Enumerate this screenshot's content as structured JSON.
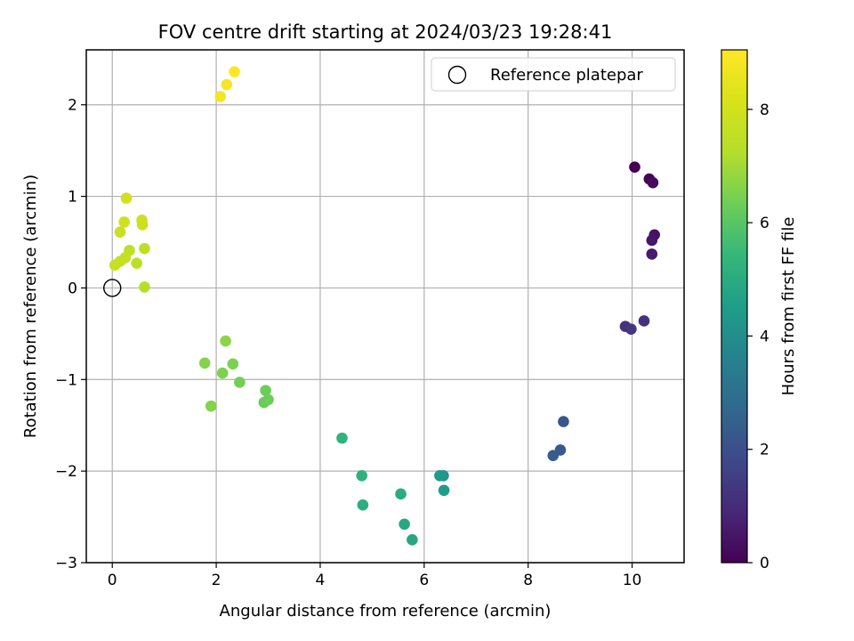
{
  "chart_data": {
    "type": "scatter",
    "title": "FOV centre drift starting at 2024/03/23 19:28:41",
    "xlabel": "Angular distance from reference (arcmin)",
    "ylabel": "Rotation from reference (arcmin)",
    "xlim": [
      -0.5,
      11
    ],
    "ylim": [
      -3,
      2.6
    ],
    "xticks": [
      0,
      2,
      4,
      6,
      8,
      10
    ],
    "xtick_labels": [
      "0",
      "2",
      "4",
      "6",
      "8",
      "10"
    ],
    "yticks": [
      -3,
      -2,
      -1,
      0,
      1,
      2
    ],
    "ytick_labels": [
      "−3",
      "−2",
      "−1",
      "0",
      "1",
      "2"
    ],
    "grid": true,
    "legend": {
      "position": "upper-right",
      "entries": [
        "Reference platepar"
      ]
    },
    "colorbar": {
      "label": "Hours from first FF file",
      "range": [
        0,
        9.05
      ],
      "colormap": "viridis",
      "ticks": [
        0,
        2,
        4,
        6,
        8
      ],
      "tick_labels": [
        "0",
        "2",
        "4",
        "6",
        "8"
      ]
    },
    "reference_point": {
      "x": 0,
      "y": 0
    },
    "points": [
      {
        "x": 10.05,
        "y": 1.32,
        "c": 0.0
      },
      {
        "x": 10.33,
        "y": 1.19,
        "c": 0.1
      },
      {
        "x": 10.4,
        "y": 1.15,
        "c": 0.2
      },
      {
        "x": 10.43,
        "y": 0.58,
        "c": 0.4
      },
      {
        "x": 10.38,
        "y": 0.52,
        "c": 0.5
      },
      {
        "x": 10.38,
        "y": 0.37,
        "c": 0.6
      },
      {
        "x": 10.23,
        "y": -0.36,
        "c": 1.1
      },
      {
        "x": 9.87,
        "y": -0.42,
        "c": 1.2
      },
      {
        "x": 9.98,
        "y": -0.45,
        "c": 1.3
      },
      {
        "x": 8.68,
        "y": -1.46,
        "c": 2.2
      },
      {
        "x": 8.62,
        "y": -1.77,
        "c": 2.3
      },
      {
        "x": 8.48,
        "y": -1.83,
        "c": 2.4
      },
      {
        "x": 6.37,
        "y": -2.05,
        "c": 4.3
      },
      {
        "x": 6.3,
        "y": -2.05,
        "c": 4.4
      },
      {
        "x": 6.38,
        "y": -2.21,
        "c": 4.5
      },
      {
        "x": 5.77,
        "y": -2.75,
        "c": 4.8
      },
      {
        "x": 5.62,
        "y": -2.58,
        "c": 4.9
      },
      {
        "x": 5.55,
        "y": -2.25,
        "c": 5.0
      },
      {
        "x": 4.82,
        "y": -2.37,
        "c": 5.1
      },
      {
        "x": 4.8,
        "y": -2.05,
        "c": 5.2
      },
      {
        "x": 4.42,
        "y": -1.64,
        "c": 5.3
      },
      {
        "x": 2.92,
        "y": -1.25,
        "c": 6.2
      },
      {
        "x": 3.0,
        "y": -1.22,
        "c": 6.3
      },
      {
        "x": 2.95,
        "y": -1.12,
        "c": 6.3
      },
      {
        "x": 2.45,
        "y": -1.03,
        "c": 6.4
      },
      {
        "x": 2.32,
        "y": -0.83,
        "c": 6.5
      },
      {
        "x": 2.12,
        "y": -0.93,
        "c": 6.5
      },
      {
        "x": 1.9,
        "y": -1.29,
        "c": 6.6
      },
      {
        "x": 1.78,
        "y": -0.82,
        "c": 6.6
      },
      {
        "x": 2.18,
        "y": -0.58,
        "c": 6.7
      },
      {
        "x": 0.62,
        "y": 0.01,
        "c": 7.3
      },
      {
        "x": 0.47,
        "y": 0.27,
        "c": 7.4
      },
      {
        "x": 0.33,
        "y": 0.41,
        "c": 7.5
      },
      {
        "x": 0.62,
        "y": 0.43,
        "c": 7.5
      },
      {
        "x": 0.25,
        "y": 0.33,
        "c": 7.6
      },
      {
        "x": 0.15,
        "y": 0.29,
        "c": 7.6
      },
      {
        "x": 0.05,
        "y": 0.25,
        "c": 7.7
      },
      {
        "x": 0.15,
        "y": 0.61,
        "c": 7.7
      },
      {
        "x": 0.58,
        "y": 0.69,
        "c": 7.8
      },
      {
        "x": 0.57,
        "y": 0.74,
        "c": 7.8
      },
      {
        "x": 0.23,
        "y": 0.72,
        "c": 7.9
      },
      {
        "x": 0.27,
        "y": 0.98,
        "c": 8.0
      },
      {
        "x": 2.08,
        "y": 2.09,
        "c": 8.8
      },
      {
        "x": 2.2,
        "y": 2.22,
        "c": 8.9
      },
      {
        "x": 2.35,
        "y": 2.36,
        "c": 9.0
      }
    ]
  }
}
